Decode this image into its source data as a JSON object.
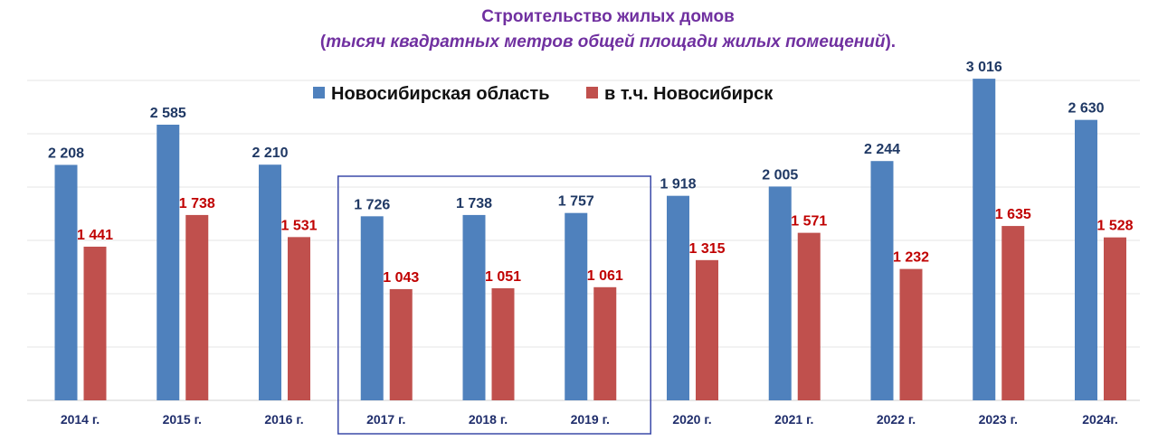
{
  "chart_data": {
    "type": "bar",
    "title": "Строительство жилых домов",
    "subtitle": "тысяч квадратных метров общей площади жилых помещений",
    "subtitle_prefix": "(",
    "subtitle_suffix": ").",
    "title_color": "#7030a0",
    "categories": [
      "2014 г.",
      "2015 г.",
      "2016 г.",
      "2017 г.",
      "2018 г.",
      "2019 г.",
      "2020 г.",
      "2021 г.",
      "2022 г.",
      "2023 г.",
      "2024г."
    ],
    "series": [
      {
        "name": "Новосибирская область",
        "color": "#4f81bd",
        "label_color": "#1f3864",
        "values": [
          2208,
          2585,
          2210,
          1726,
          1738,
          1757,
          1918,
          2005,
          2244,
          3016,
          2630
        ],
        "labels": [
          "2 208",
          "2 585",
          "2 210",
          "1 726",
          "1 738",
          "1 757",
          "1 918",
          "2 005",
          "2 244",
          "3 016",
          "2 630"
        ]
      },
      {
        "name": "в  т.ч. Новосибирск",
        "color": "#c0504d",
        "label_color": "#c00000",
        "values": [
          1441,
          1738,
          1531,
          1043,
          1051,
          1061,
          1315,
          1571,
          1232,
          1635,
          1528
        ],
        "labels": [
          "1 441",
          "1 738",
          "1 531",
          "1 043",
          "1 051",
          "1 061",
          "1 315",
          "1 571",
          "1 232",
          "1 635",
          "1 528"
        ]
      }
    ],
    "ylim": [
      0,
      3000
    ],
    "grid": true,
    "legend": "top-center",
    "highlight_categories": [
      "2017 г.",
      "2018 г.",
      "2019 г."
    ],
    "highlight_color": "#3b4aa8"
  }
}
